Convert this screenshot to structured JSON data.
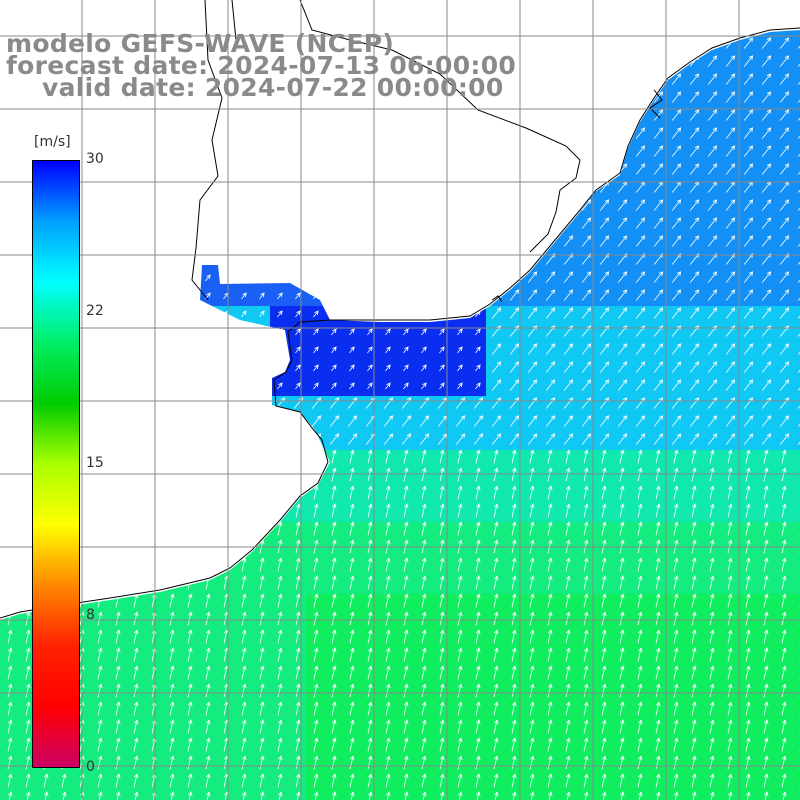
{
  "title": {
    "line1": "modelo GEFS-WAVE (NCEP)",
    "line2": "forecast date: 2024-07-13 06:00:00",
    "line3": "valid date: 2024-07-22 00:00:00"
  },
  "colorbar": {
    "unit": "[m/s]",
    "ticks": [
      "30",
      "22",
      "15",
      "8",
      "0"
    ],
    "tick_values": [
      30,
      22,
      15,
      8,
      0
    ],
    "min": 0,
    "max": 30,
    "colors": [
      "#0000ff",
      "#00a0ff",
      "#00ffff",
      "#00ee66",
      "#00cc00",
      "#aaff00",
      "#ffff00",
      "#ff8800",
      "#ff2200",
      "#ff0000",
      "#cc0066"
    ]
  },
  "map": {
    "variable": "wind speed",
    "land_color": "#ffffff",
    "grid_color": "#888888",
    "arrow_color": "#ffffff"
  }
}
